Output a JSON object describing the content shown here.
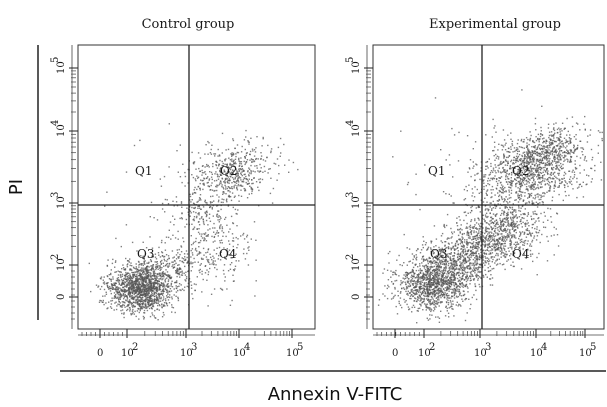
{
  "chart_data": [
    {
      "type": "scatter",
      "title": "Control group",
      "x_scale": "biexponential",
      "y_scale": "biexponential",
      "x_ticks": [
        "0",
        "10^2",
        "10^3",
        "10^4",
        "10^5"
      ],
      "y_ticks": [
        "0",
        "10^2",
        "10^3",
        "10^4",
        "10^5"
      ],
      "gate": {
        "x": 1000,
        "y": 1000
      },
      "quadrants": [
        "Q1",
        "Q2",
        "Q3",
        "Q4"
      ],
      "populations": [
        {
          "quadrant": "Q3",
          "center": [
            150,
            60
          ],
          "density": "very high"
        },
        {
          "quadrant": "Q4",
          "center": [
            3000,
            300
          ],
          "density": "low"
        },
        {
          "quadrant": "Q2",
          "center": [
            5000,
            3000
          ],
          "density": "moderate"
        },
        {
          "quadrant": "Q1",
          "center": [
            200,
            2000
          ],
          "density": "very low"
        }
      ]
    },
    {
      "type": "scatter",
      "title": "Experimental group",
      "x_scale": "biexponential",
      "y_scale": "biexponential",
      "x_ticks": [
        "0",
        "10^2",
        "10^3",
        "10^4",
        "10^5"
      ],
      "y_ticks": [
        "0",
        "10^2",
        "10^3",
        "10^4",
        "10^5"
      ],
      "gate": {
        "x": 1000,
        "y": 1000
      },
      "quadrants": [
        "Q1",
        "Q2",
        "Q3",
        "Q4"
      ],
      "populations": [
        {
          "quadrant": "Q3",
          "center": [
            120,
            50
          ],
          "density": "high"
        },
        {
          "quadrant": "Q4",
          "center": [
            3000,
            350
          ],
          "density": "high"
        },
        {
          "quadrant": "Q2",
          "center": [
            8000,
            3000
          ],
          "density": "high"
        },
        {
          "quadrant": "Q1",
          "center": [
            300,
            2500
          ],
          "density": "very low"
        }
      ]
    }
  ],
  "labels": {
    "y_axis": "PI",
    "x_axis": "Annexin V-FITC",
    "panel_left_title": "Control group",
    "panel_right_title": "Experimental group",
    "q1": "Q1",
    "q2": "Q2",
    "q3": "Q3",
    "q4": "Q4",
    "tick_zero": "0",
    "tick_base": "10",
    "exp2": "2",
    "exp3": "3",
    "exp4": "4",
    "exp5": "5"
  },
  "colors": {
    "dots": "#555555",
    "frame": "#333333",
    "gate": "#222222"
  }
}
